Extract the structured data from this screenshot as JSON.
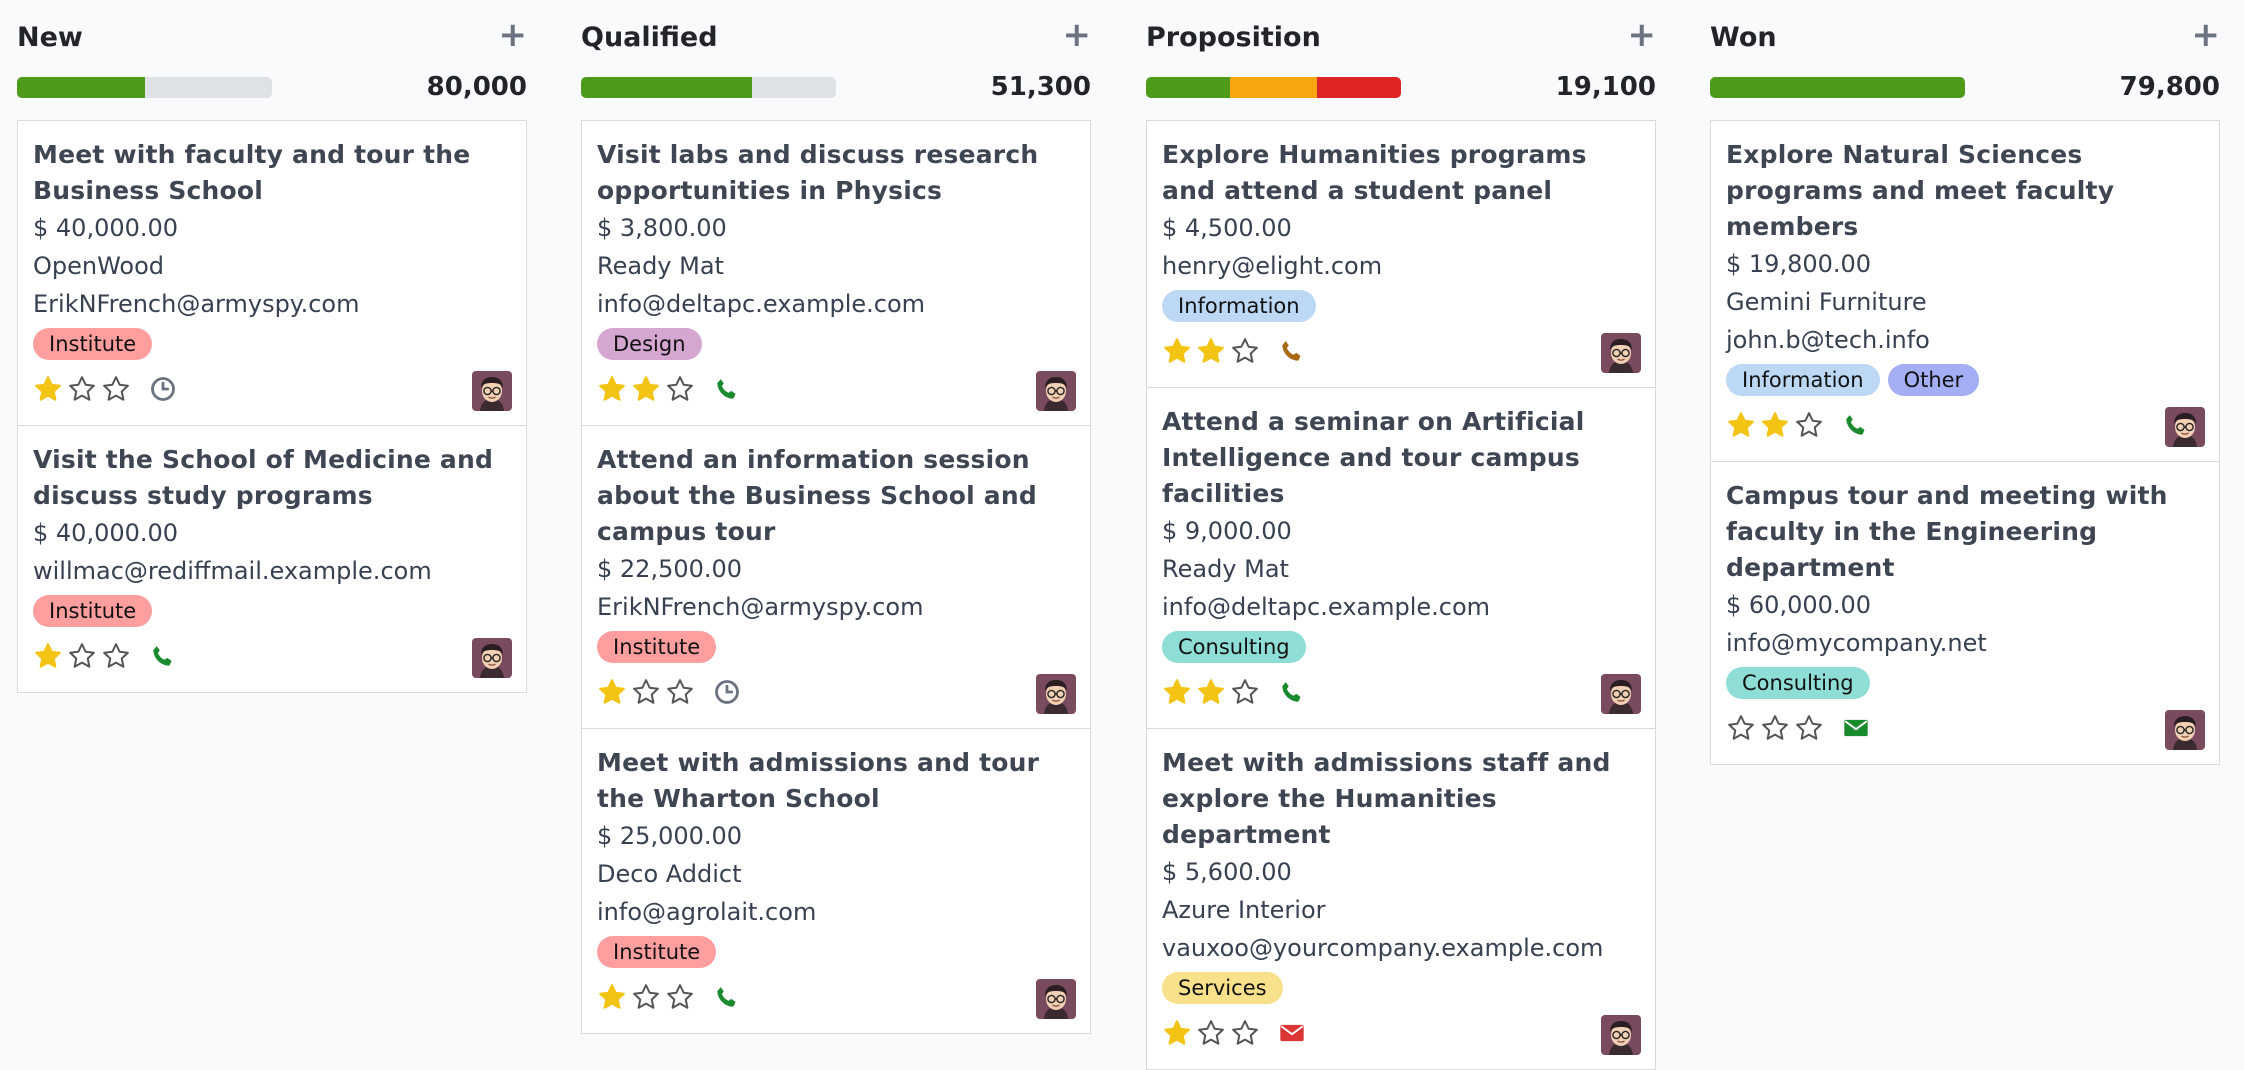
{
  "columns": [
    {
      "title": "New",
      "total": "80,000",
      "add_icon": "plus-icon",
      "progress": [
        {
          "color": "#4e9a1a",
          "fraction": 0.5
        }
      ],
      "cards": [
        {
          "title": "Meet with faculty and tour the Business School",
          "amount": "$ 40,000.00",
          "company": "OpenWood",
          "email": "ErikNFrench@armyspy.com",
          "tags": [
            {
              "label": "Institute",
              "color": "#ff9e9e"
            }
          ],
          "stars": 1,
          "activity": "clock"
        },
        {
          "title": "Visit the School of Medicine and discuss study programs",
          "amount": "$ 40,000.00",
          "company": "",
          "email": "willmac@rediffmail.example.com",
          "tags": [
            {
              "label": "Institute",
              "color": "#ff9e9e"
            }
          ],
          "stars": 1,
          "activity": "phone"
        }
      ]
    },
    {
      "title": "Qualified",
      "total": "51,300",
      "add_icon": "plus-icon",
      "progress": [
        {
          "color": "#4e9a1a",
          "fraction": 0.67
        }
      ],
      "cards": [
        {
          "title": "Visit labs and discuss research opportunities in Physics",
          "amount": "$ 3,800.00",
          "company": "Ready Mat",
          "email": "info@deltapc.example.com",
          "tags": [
            {
              "label": "Design",
              "color": "#d5a6d0"
            }
          ],
          "stars": 2,
          "activity": "phone"
        },
        {
          "title": "Attend an information session about the Business School and campus tour",
          "amount": "$ 22,500.00",
          "company": "",
          "email": "ErikNFrench@armyspy.com",
          "tags": [
            {
              "label": "Institute",
              "color": "#ff9e9e"
            }
          ],
          "stars": 1,
          "activity": "clock"
        },
        {
          "title": "Meet with admissions and tour the Wharton School",
          "amount": "$ 25,000.00",
          "company": "Deco Addict",
          "email": "info@agrolait.com",
          "tags": [
            {
              "label": "Institute",
              "color": "#ff9e9e"
            }
          ],
          "stars": 1,
          "activity": "phone"
        }
      ]
    },
    {
      "title": "Proposition",
      "total": "19,100",
      "add_icon": "plus-icon",
      "progress": [
        {
          "color": "#4e9a1a",
          "fraction": 0.33
        },
        {
          "color": "#f9a510",
          "fraction": 0.34
        },
        {
          "color": "#de2424",
          "fraction": 0.33
        }
      ],
      "cards": [
        {
          "title": "Explore Humanities programs and attend a student panel",
          "amount": "$ 4,500.00",
          "company": "",
          "email": "henry@elight.com",
          "tags": [
            {
              "label": "Information",
              "color": "#bcd8f5"
            }
          ],
          "stars": 2,
          "activity": "phone-warn"
        },
        {
          "title": "Attend a seminar on Artificial Intelligence and tour campus facilities",
          "amount": "$ 9,000.00",
          "company": "Ready Mat",
          "email": "info@deltapc.example.com",
          "tags": [
            {
              "label": "Consulting",
              "color": "#8fded6"
            }
          ],
          "stars": 2,
          "activity": "phone"
        },
        {
          "title": "Meet with admissions staff and explore the Humanities department",
          "amount": "$ 5,600.00",
          "company": "Azure Interior",
          "email": "vauxoo@yourcompany.example.com",
          "tags": [
            {
              "label": "Services",
              "color": "#f9e08b"
            }
          ],
          "stars": 1,
          "activity": "envelope-red"
        }
      ]
    },
    {
      "title": "Won",
      "total": "79,800",
      "add_icon": "plus-icon",
      "progress": [
        {
          "color": "#4e9a1a",
          "fraction": 1.0
        }
      ],
      "cards": [
        {
          "title": "Explore Natural Sciences programs and meet faculty members",
          "amount": "$ 19,800.00",
          "company": "Gemini Furniture",
          "email": "john.b@tech.info",
          "tags": [
            {
              "label": "Information",
              "color": "#bcd8f5"
            },
            {
              "label": "Other",
              "color": "#a4aef5"
            }
          ],
          "stars": 2,
          "activity": "phone"
        },
        {
          "title": "Campus tour and meeting with faculty in the Engineering department",
          "amount": "$ 60,000.00",
          "company": "",
          "email": "info@mycompany.net",
          "tags": [
            {
              "label": "Consulting",
              "color": "#8fded6"
            }
          ],
          "stars": 0,
          "activity": "envelope-green"
        }
      ]
    }
  ]
}
